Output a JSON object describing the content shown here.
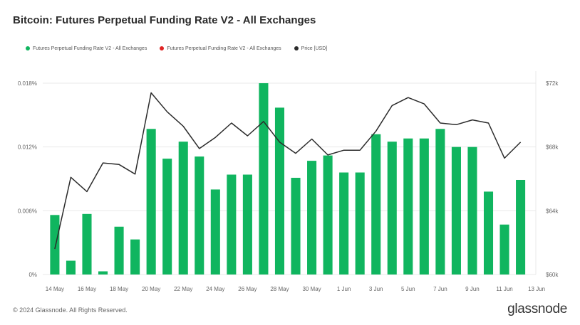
{
  "title": "Bitcoin: Futures Perpetual Funding Rate V2 - All Exchanges",
  "footer": {
    "copyright": "© 2024 Glassnode. All Rights Reserved.",
    "brand": "glassnode"
  },
  "colors": {
    "positive": "#10b55f",
    "negative": "#e02424",
    "price": "#2b2b2b",
    "grid": "#e9e9e9",
    "axis_text": "#666666"
  },
  "chart_data": {
    "type": "bar",
    "legend": [
      {
        "name": "Futures Perpetual Funding Rate V2 - All Exchanges",
        "color": "#10b55f"
      },
      {
        "name": "Futures Perpetual Funding Rate V2 - All Exchanges",
        "color": "#e02424"
      },
      {
        "name": "Price [USD]",
        "color": "#2b2b2b"
      }
    ],
    "x_tick_labels": [
      "14 May",
      "16 May",
      "18 May",
      "20 May",
      "22 May",
      "24 May",
      "26 May",
      "28 May",
      "30 May",
      "1 Jun",
      "3 Jun",
      "5 Jun",
      "7 Jun",
      "9 Jun",
      "11 Jun",
      "13 Jun"
    ],
    "dates": [
      "2024-05-14",
      "2024-05-15",
      "2024-05-16",
      "2024-05-17",
      "2024-05-18",
      "2024-05-19",
      "2024-05-20",
      "2024-05-21",
      "2024-05-22",
      "2024-05-23",
      "2024-05-24",
      "2024-05-25",
      "2024-05-26",
      "2024-05-27",
      "2024-05-28",
      "2024-05-29",
      "2024-05-30",
      "2024-05-31",
      "2024-06-01",
      "2024-06-02",
      "2024-06-03",
      "2024-06-04",
      "2024-06-05",
      "2024-06-06",
      "2024-06-07",
      "2024-06-08",
      "2024-06-09",
      "2024-06-10",
      "2024-06-11",
      "2024-06-12"
    ],
    "series": [
      {
        "name": "Futures Perpetual Funding Rate V2 - All Exchanges",
        "axis": "left",
        "values": [
          0.0056,
          0.0013,
          0.0057,
          0.0003,
          0.0045,
          0.0033,
          0.0137,
          0.0109,
          0.0125,
          0.0111,
          0.008,
          0.0094,
          0.0094,
          0.018,
          0.0157,
          0.0091,
          0.0107,
          0.0112,
          0.0096,
          0.0096,
          0.0132,
          0.0125,
          0.0128,
          0.0128,
          0.0137,
          0.012,
          0.012,
          0.0078,
          0.0047,
          0.0089
        ]
      },
      {
        "name": "Price [USD]",
        "axis": "right",
        "values": [
          61600,
          66100,
          65200,
          67000,
          66900,
          66300,
          71400,
          70200,
          69300,
          67900,
          68600,
          69500,
          68700,
          69600,
          68300,
          67600,
          68500,
          67500,
          67800,
          67800,
          69000,
          70600,
          71100,
          70700,
          69500,
          69400,
          69700,
          69500,
          67300,
          68300
        ]
      }
    ],
    "y_left": {
      "ticks": [
        "0%",
        "0.006%",
        "0.012%",
        "0.018%"
      ],
      "min": 0,
      "max": 0.018
    },
    "y_right": {
      "ticks": [
        "$60k",
        "$64k",
        "$68k",
        "$72k"
      ],
      "min": 60000,
      "max": 72000
    },
    "grid": true,
    "legend_position": "top-left"
  }
}
